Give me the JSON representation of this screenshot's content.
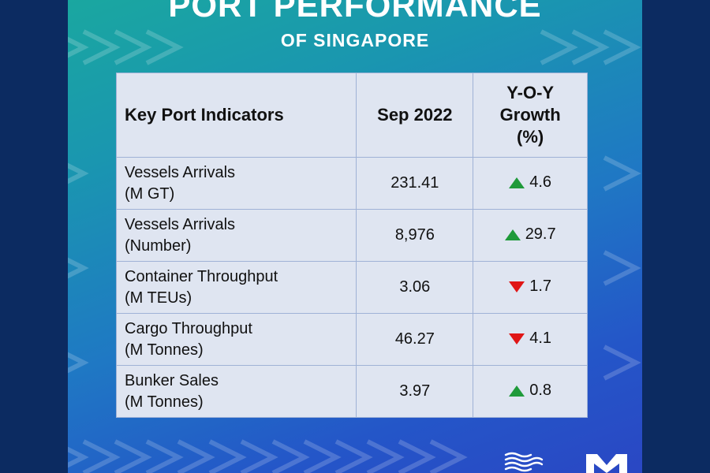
{
  "poster": {
    "title": "PORT PERFORMANCE",
    "subtitle": "OF SINGAPORE"
  },
  "table": {
    "headers": {
      "indicator": "Key Port Indicators",
      "period": "Sep 2022",
      "growth_line1": "Y-O-Y",
      "growth_line2": "Growth",
      "growth_line3": "(%)"
    },
    "rows": [
      {
        "name": "Vessels Arrivals",
        "unit": "(M GT)",
        "value": "231.41",
        "direction": "up",
        "growth": "4.6"
      },
      {
        "name": "Vessels Arrivals",
        "unit": "(Number)",
        "value": "8,976",
        "direction": "up",
        "growth": "29.7"
      },
      {
        "name": "Container Throughput",
        "unit": "(M TEUs)",
        "value": "3.06",
        "direction": "down",
        "growth": "1.7"
      },
      {
        "name": "Cargo Throughput",
        "unit": "(M Tonnes)",
        "value": "46.27",
        "direction": "down",
        "growth": "4.1"
      },
      {
        "name": "Bunker Sales",
        "unit": "(M Tonnes)",
        "value": "3.97",
        "direction": "up",
        "growth": "0.8"
      }
    ]
  },
  "colors": {
    "up": "#1f9a3a",
    "down": "#e01616",
    "table_bg": "#dfe5f1",
    "border": "#9fb2d6"
  },
  "icons": {
    "up": "triangle-up-icon",
    "down": "triangle-down-icon",
    "logo_left": "mpa-waves-logo",
    "logo_right": "mpa-m-logo"
  }
}
